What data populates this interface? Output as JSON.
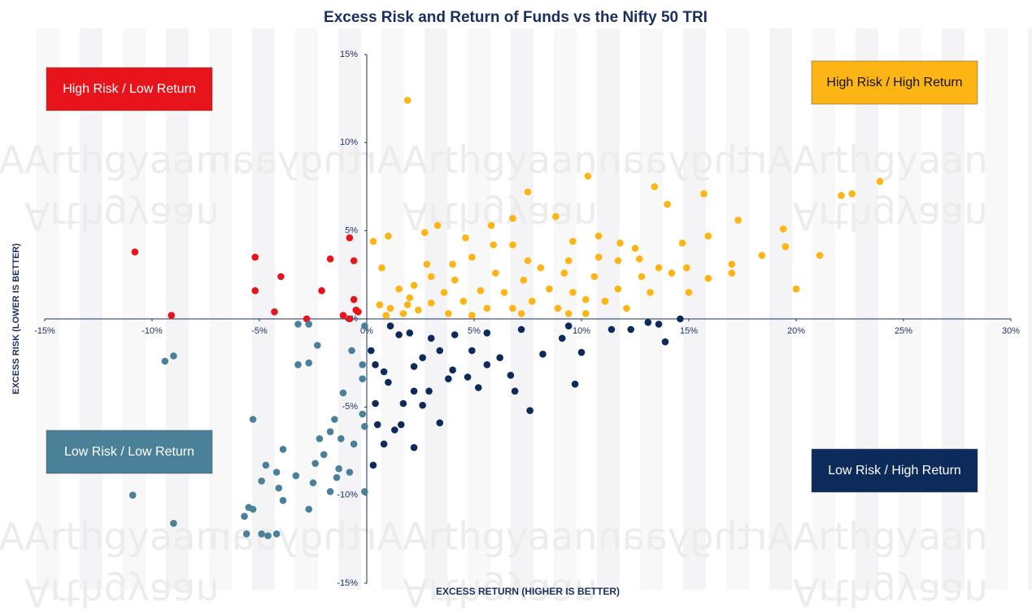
{
  "chart_data": {
    "type": "scatter",
    "title": "Excess Risk and Return of Funds vs the Nifty 50 TRI",
    "x_label": "EXCESS RETURN (HIGHER IS BETTER)",
    "y_label": "EXCESS RISK (LOWER IS BETTER)",
    "watermark": "Arthgyaan",
    "xlim": [
      -15,
      30
    ],
    "ylim": [
      -15,
      15
    ],
    "xticks": [
      {
        "value": -15,
        "label": "-15%"
      },
      {
        "value": -10,
        "label": "-10%"
      },
      {
        "value": -5,
        "label": "-5%"
      },
      {
        "value": 0,
        "label": "0%"
      },
      {
        "value": 5,
        "label": "5%"
      },
      {
        "value": 10,
        "label": "10%"
      },
      {
        "value": 15,
        "label": "15%"
      },
      {
        "value": 20,
        "label": "20%"
      },
      {
        "value": 25,
        "label": "25%"
      },
      {
        "value": 30,
        "label": "30%"
      }
    ],
    "yticks": [
      {
        "value": -15,
        "label": "-15%"
      },
      {
        "value": -10,
        "label": "-10%"
      },
      {
        "value": -5,
        "label": "-5%"
      },
      {
        "value": 0,
        "label": "0%"
      },
      {
        "value": 5,
        "label": "5%"
      },
      {
        "value": 10,
        "label": "10%"
      },
      {
        "value": 15,
        "label": "15%"
      }
    ],
    "grid": false,
    "series": [
      {
        "name": "High Risk / High Return",
        "color": "#fdb515",
        "x": [
          1.9,
          10.3,
          7.5,
          13.4,
          15.7,
          23.9,
          22.6,
          22.1,
          14.0,
          17.3,
          19.4,
          18.4,
          19.5,
          21.1,
          20.0,
          17.0,
          15.9,
          15.0,
          15.9,
          14.7,
          12.5,
          11.8,
          10.8,
          9.6,
          8.8,
          6.8,
          5.8,
          5.9,
          4.6,
          3.3,
          2.7,
          1.0,
          0.3,
          0.7,
          1.5,
          0.6,
          1.1,
          1.9,
          2.4,
          3.0,
          3.6,
          4.1,
          4.5,
          5.3,
          5.6,
          6.0,
          6.4,
          6.8,
          7.3,
          7.7,
          8.1,
          8.5,
          8.9,
          9.2,
          9.6,
          10.2,
          10.6,
          11.1,
          11.7,
          12.1,
          12.8,
          13.2,
          13.6,
          14.2,
          14.9,
          11.7,
          9.4,
          7.5,
          4.9,
          3.0,
          2.2,
          3.8,
          4.9,
          10.2,
          7.2,
          9.4,
          0.9,
          1.7,
          2.0,
          2.8,
          4.0,
          6.8,
          10.8,
          12.7,
          17.0
        ],
        "values": [
          12.4,
          8.1,
          7.2,
          7.5,
          7.1,
          7.8,
          7.1,
          7.0,
          6.5,
          5.6,
          5.1,
          3.6,
          4.1,
          3.6,
          1.7,
          2.6,
          2.3,
          1.5,
          4.7,
          4.3,
          4.0,
          4.3,
          3.5,
          4.4,
          5.8,
          5.7,
          5.3,
          4.2,
          4.6,
          5.3,
          4.9,
          4.7,
          4.4,
          2.9,
          1.7,
          0.8,
          0.6,
          0.8,
          0.5,
          0.9,
          1.5,
          2.2,
          1.0,
          1.6,
          0.6,
          2.6,
          1.5,
          0.6,
          2.2,
          1.0,
          2.9,
          1.7,
          0.6,
          2.6,
          1.5,
          0.3,
          2.4,
          1.0,
          1.7,
          0.6,
          2.4,
          1.5,
          2.9,
          2.6,
          2.9,
          3.3,
          3.3,
          3.3,
          3.5,
          2.4,
          1.9,
          0.3,
          0.2,
          1.1,
          0.3,
          0.3,
          0.2,
          0.3,
          1.2,
          3.1,
          3.1,
          4.2,
          4.7,
          3.4,
          3.1
        ]
      },
      {
        "name": "High Risk / Low Return",
        "color": "#e8141c",
        "x": [
          -10.8,
          -9.1,
          -5.2,
          -5.2,
          -4.0,
          -4.3,
          -2.8,
          -2.1,
          -1.7,
          -0.8,
          -0.6,
          -0.6,
          -0.5,
          -1.1,
          -0.4,
          -0.8
        ],
        "values": [
          3.8,
          0.2,
          3.5,
          1.6,
          2.4,
          0.4,
          0.0,
          1.6,
          3.4,
          4.6,
          3.3,
          1.1,
          0.5,
          0.2,
          0.4,
          0.0
        ]
      },
      {
        "name": "Low Risk / Low Return",
        "color": "#4a8198",
        "x": [
          -9.0,
          -9.4,
          -10.9,
          -9.0,
          -5.3,
          -3.2,
          -2.7,
          -3.2,
          -2.7,
          -2.3,
          -0.7,
          -0.2,
          -0.2,
          -1.1,
          -1.5,
          -0.2,
          -0.1,
          -1.7,
          -2.2,
          -3.9,
          -4.7,
          -4.2,
          -4.9,
          -4.1,
          -3.9,
          -3.3,
          -2.5,
          -2.4,
          -2.0,
          -1.7,
          -1.4,
          -0.8,
          -0.6,
          -0.1,
          -2.7,
          -5.5,
          -5.7,
          -5.6,
          -4.9,
          -4.6,
          -4.2,
          -5.3,
          -1.3,
          -1.2,
          -0.1
        ],
        "values": [
          -2.1,
          -2.4,
          -10.0,
          -11.6,
          -5.7,
          -2.6,
          -2.5,
          -0.3,
          -0.3,
          -1.5,
          -1.8,
          -2.6,
          -3.4,
          -4.2,
          -5.7,
          -5.4,
          -6.1,
          -6.4,
          -6.8,
          -7.4,
          -8.3,
          -8.7,
          -9.2,
          -9.6,
          -10.3,
          -8.9,
          -9.3,
          -8.2,
          -7.7,
          -9.8,
          -9.0,
          -8.7,
          -7.1,
          -9.8,
          -10.8,
          -10.7,
          -11.2,
          -12.2,
          -12.2,
          -12.3,
          -12.2,
          -10.8,
          -8.5,
          -6.8,
          -0.4
        ]
      },
      {
        "name": "Low Risk / High Return",
        "color": "#0d2b5a",
        "x": [
          0.2,
          0.4,
          0.8,
          1.0,
          0.4,
          0.5,
          0.3,
          0.8,
          1.3,
          1.6,
          2.2,
          2.2,
          1.7,
          2.6,
          3.4,
          2.9,
          3.8,
          4.0,
          4.7,
          5.2,
          5.6,
          6.2,
          6.7,
          6.9,
          7.6,
          8.2,
          9.1,
          9.7,
          10.0,
          11.4,
          12.3,
          13.1,
          13.9,
          14.6,
          13.6,
          9.4,
          7.2,
          5.6,
          4.1,
          3.0,
          2.0,
          1.5,
          1.1,
          2.6,
          3.4,
          4.9,
          2.2
        ],
        "values": [
          -1.8,
          -2.6,
          -3.0,
          -3.6,
          -4.8,
          -6.0,
          -8.3,
          -7.1,
          -6.3,
          -6.0,
          -7.3,
          -4.1,
          -4.8,
          -4.9,
          -5.9,
          -4.1,
          -3.4,
          -2.9,
          -3.3,
          -3.9,
          -2.6,
          -2.2,
          -3.2,
          -4.1,
          -5.2,
          -2.0,
          -1.1,
          -3.7,
          -1.9,
          -0.6,
          -0.6,
          -0.2,
          -1.3,
          0.0,
          -0.3,
          -0.4,
          -0.6,
          -0.8,
          -0.9,
          -1.1,
          -0.8,
          -0.9,
          -0.4,
          -2.2,
          -1.8,
          -1.8,
          -2.7
        ]
      }
    ]
  }
}
